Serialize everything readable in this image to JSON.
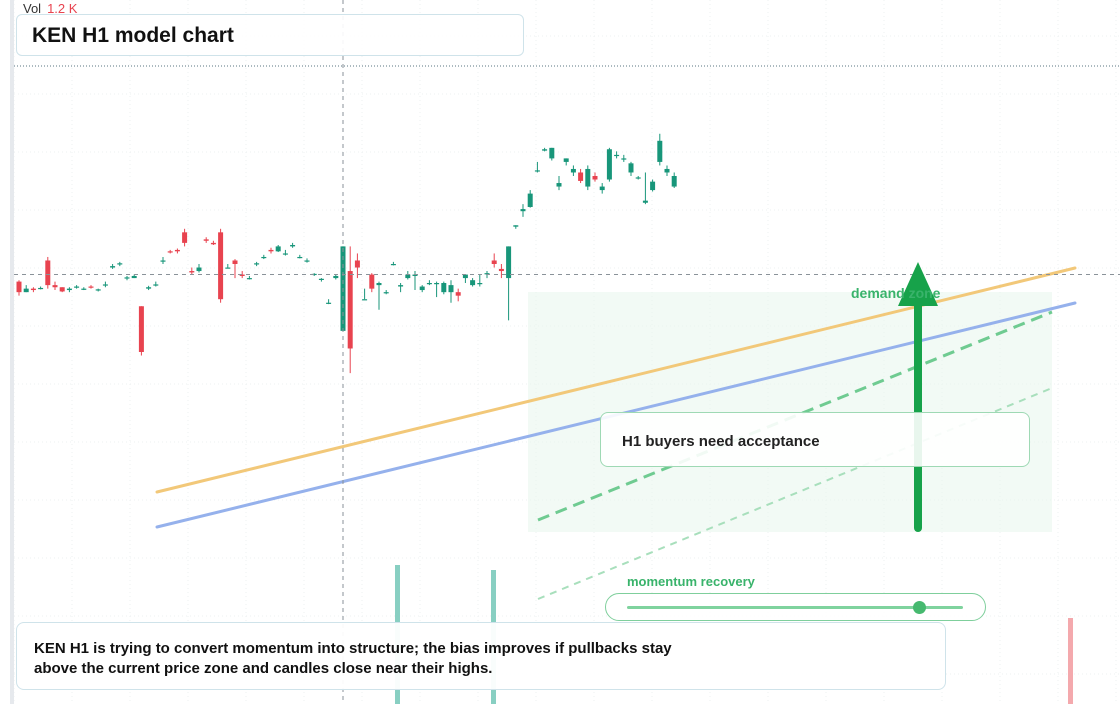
{
  "chart_data": {
    "type": "candlestick",
    "title": "KEN H1 model chart",
    "symbol": "KEN",
    "timeframe": "H1",
    "volume": {
      "label": "Vol",
      "value": "1.2 K"
    },
    "price_range": [
      0,
      100
    ],
    "crosshair": {
      "bar_index": 45,
      "price": 61
    },
    "candles": [
      [
        60,
        60.2,
        58,
        58.5
      ],
      [
        58.5,
        59.5,
        58.5,
        59
      ],
      [
        59,
        59.2,
        58.5,
        58.8
      ],
      [
        59,
        59.3,
        58.9,
        59.1
      ],
      [
        63,
        63.5,
        59,
        59.5
      ],
      [
        59.5,
        60,
        58.8,
        59.2
      ],
      [
        59.2,
        59.2,
        58.5,
        58.6
      ],
      [
        58.8,
        59.2,
        58.5,
        59
      ],
      [
        59.2,
        59.5,
        59,
        59.3
      ],
      [
        59,
        59.2,
        58.8,
        59
      ],
      [
        59.3,
        59.5,
        59,
        59.2
      ],
      [
        58.8,
        59,
        58.6,
        58.9
      ],
      [
        59.5,
        60,
        59.2,
        59.6
      ],
      [
        62,
        62.5,
        61.8,
        62.2
      ],
      [
        62.5,
        62.8,
        62.2,
        62.6
      ],
      [
        60.5,
        60.8,
        60.2,
        60.6
      ],
      [
        60.5,
        61,
        60.5,
        60.8
      ],
      [
        56.5,
        56.5,
        49.5,
        50
      ],
      [
        59,
        59.4,
        58.8,
        59.2
      ],
      [
        59.5,
        60,
        59.3,
        59.6
      ],
      [
        63,
        63.5,
        62.5,
        63
      ],
      [
        64.3,
        64.5,
        64,
        64.2
      ],
      [
        64.5,
        64.7,
        64,
        64.3
      ],
      [
        67,
        67.5,
        65,
        65.5
      ],
      [
        61.5,
        62,
        61,
        61.3
      ],
      [
        61.5,
        62.5,
        61.3,
        62
      ],
      [
        66,
        66.3,
        65.5,
        65.8
      ],
      [
        65.5,
        65.8,
        65.2,
        65.3
      ],
      [
        67,
        67.5,
        57,
        57.5
      ],
      [
        62,
        62.5,
        62,
        62
      ],
      [
        63,
        63.2,
        60.5,
        62.5
      ],
      [
        61,
        61.5,
        60.5,
        60.8
      ],
      [
        60.5,
        60.8,
        60.3,
        60.5
      ],
      [
        62.5,
        62.8,
        62.2,
        62.6
      ],
      [
        63.5,
        63.8,
        63.2,
        63.5
      ],
      [
        64.5,
        64.8,
        64,
        64.3
      ],
      [
        64.3,
        65.2,
        64.2,
        65
      ],
      [
        64,
        64.5,
        63.7,
        64
      ],
      [
        65,
        65.5,
        64.8,
        65.2
      ],
      [
        63.5,
        63.8,
        63.3,
        63.5
      ],
      [
        63,
        63.3,
        62.7,
        63
      ],
      [
        61,
        61.2,
        60.8,
        61.1
      ],
      [
        60.3,
        60.5,
        60,
        60.4
      ],
      [
        57,
        57.5,
        56.8,
        57
      ],
      [
        60.5,
        61,
        60.3,
        60.8
      ],
      [
        53,
        65,
        53,
        65
      ],
      [
        61.5,
        65,
        47,
        50.5
      ],
      [
        63,
        64,
        60.5,
        62
      ],
      [
        57.5,
        59,
        57.5,
        57.5
      ],
      [
        61,
        61.2,
        58.5,
        59
      ],
      [
        59.5,
        60,
        56,
        59.8
      ],
      [
        58.5,
        58.8,
        58.2,
        58.5
      ],
      [
        62.5,
        62.8,
        62.3,
        62.5
      ],
      [
        59.3,
        59.8,
        58.5,
        59.5
      ],
      [
        60.5,
        61.5,
        60.3,
        61
      ],
      [
        60.8,
        61.5,
        58.8,
        61
      ],
      [
        58.8,
        59.5,
        58.5,
        59.3
      ],
      [
        59.8,
        60.2,
        59.5,
        59.8
      ],
      [
        59.8,
        60,
        57.8,
        59.8
      ],
      [
        58.5,
        60,
        58.2,
        59.8
      ],
      [
        58.5,
        60.2,
        57,
        59.5
      ],
      [
        58.5,
        59,
        57.2,
        58
      ],
      [
        60.5,
        61,
        59.8,
        61
      ],
      [
        59.5,
        60.5,
        59.3,
        60.2
      ],
      [
        59.8,
        61,
        59.3,
        59.8
      ],
      [
        61.2,
        61.5,
        60.5,
        61.2
      ],
      [
        63,
        64,
        62,
        62.5
      ],
      [
        61.8,
        62.5,
        60.5,
        61.5
      ],
      [
        60.5,
        65,
        54.5,
        65
      ],
      [
        67.8,
        68,
        67.5,
        68
      ],
      [
        70,
        71,
        69.2,
        70.3
      ],
      [
        70.6,
        73,
        70.5,
        72.5
      ],
      [
        75.8,
        77,
        75.5,
        75.8
      ],
      [
        78.6,
        79,
        78.5,
        78.8
      ],
      [
        77.5,
        79,
        77.2,
        79
      ],
      [
        73.5,
        75,
        73,
        74
      ],
      [
        77,
        77.5,
        76.5,
        77.5
      ],
      [
        75.5,
        76.5,
        75,
        76
      ],
      [
        75.5,
        76,
        74,
        74.3
      ],
      [
        73.5,
        76.5,
        73,
        76
      ],
      [
        75,
        75.5,
        74.2,
        74.5
      ],
      [
        73,
        74,
        72.5,
        73.5
      ],
      [
        74.5,
        79,
        74.2,
        78.8
      ],
      [
        78,
        78.5,
        77.5,
        78
      ],
      [
        77.5,
        78,
        77,
        77.5
      ],
      [
        75.5,
        77,
        75,
        76.8
      ],
      [
        74.8,
        75,
        74.5,
        74.8
      ],
      [
        71.2,
        75.5,
        71,
        71.5
      ],
      [
        73,
        74.5,
        72.8,
        74.2
      ],
      [
        77,
        81,
        76.5,
        80
      ],
      [
        75.5,
        76.5,
        75,
        76
      ],
      [
        73.5,
        75.5,
        73.3,
        75
      ]
    ],
    "trend_lines": [
      {
        "name": "",
        "color": "#f2c879"
      },
      {
        "name": "",
        "color": "#95b1ec"
      }
    ],
    "annotations": {
      "callout": "H1 buyers need acceptance",
      "zone_label": "demand zone",
      "momentum_label": "momentum recovery",
      "momentum_level": 0.87,
      "summary": "KEN H1 is trying to convert momentum into structure; the bias improves if pullbacks stay above the current price zone and candles close near their highs."
    },
    "grid": true,
    "colors": {
      "up": "#18967a",
      "down": "#e8434f",
      "zone": "#e9f7ee",
      "arrow": "#17a24a",
      "dashed": "#6fcb91"
    }
  }
}
